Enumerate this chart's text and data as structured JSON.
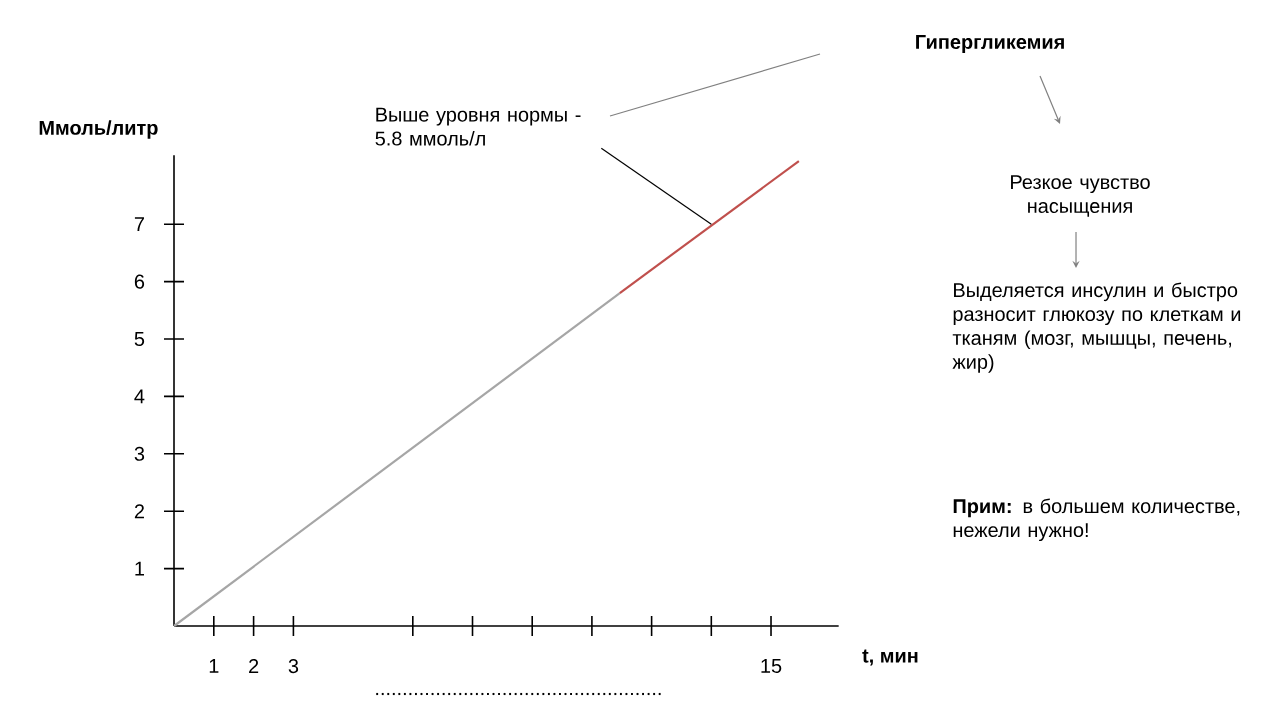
{
  "chart_data": {
    "type": "line",
    "xlabel": "t, мин",
    "ylabel": "Ммоль/литр",
    "xlim": [
      0,
      16.7
    ],
    "ylim": [
      0,
      8.2
    ],
    "xticks": [
      1,
      2,
      3,
      {
        "value": 6,
        "label": null
      },
      {
        "value": 7.5,
        "label": null
      },
      {
        "value": 9,
        "label": null
      },
      {
        "value": 10.5,
        "label": null
      },
      {
        "value": 12,
        "label": null
      },
      {
        "value": 13.5,
        "label": null
      },
      15
    ],
    "yticks": [
      1,
      2,
      3,
      4,
      5,
      6,
      7
    ],
    "series": [
      {
        "x": [
          0,
          11.2
        ],
        "values": [
          0,
          5.8
        ],
        "color": "#a6a6a6"
      },
      {
        "x": [
          11.2,
          15.7
        ],
        "values": [
          5.8,
          8.1
        ],
        "color": "#c0504d"
      }
    ],
    "annotations": [
      {
        "text": "Выше уровня нормы - 5.8 ммоль/л",
        "x": 13.5,
        "y": 7.0
      },
      "....................................................",
      "Гипергликемия",
      "Резкое чувство насыщения",
      "Выделяется инсулин и быстро разносит глюкозу по клеткам и тканям (мозг, мышцы, печень, жир)",
      "**Прим:** в большем количестве, нежели нужно!"
    ]
  }
}
